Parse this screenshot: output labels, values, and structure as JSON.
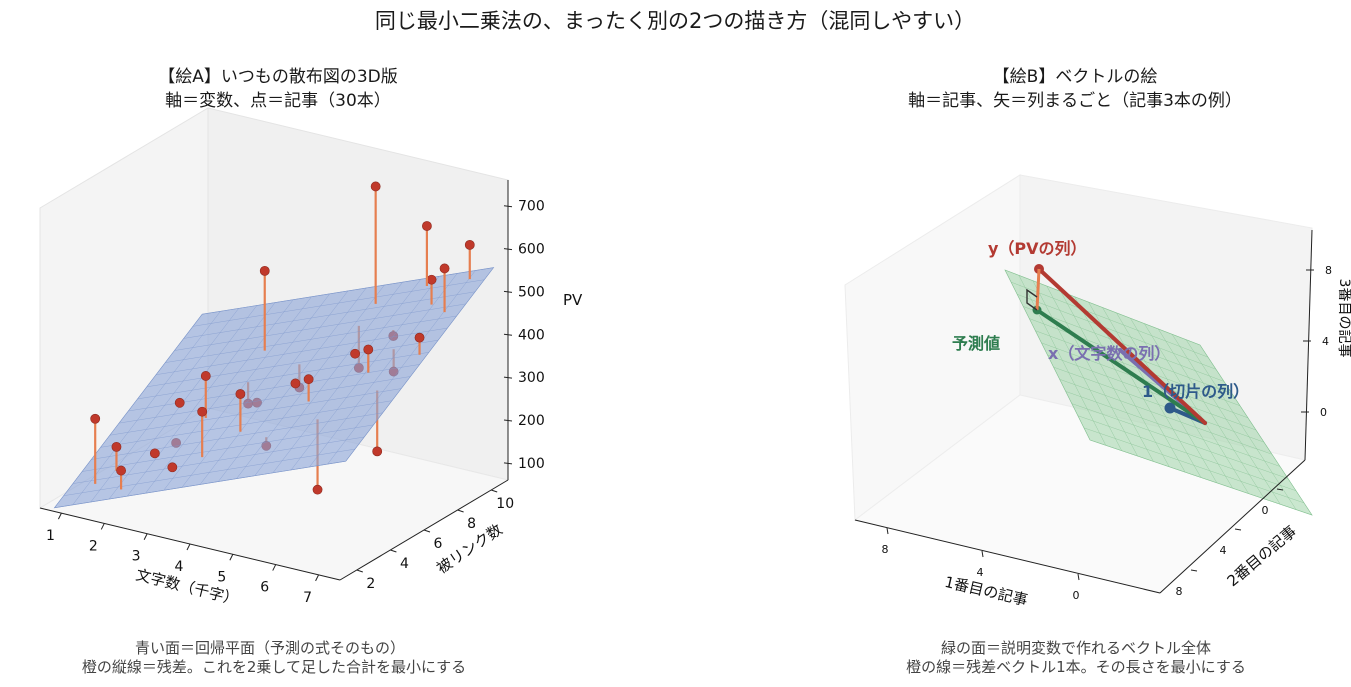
{
  "suptitle": "同じ最小二乗法の、まったく別の2つの描き方（混同しやすい）",
  "chart_data": [
    {
      "type": "scatter3d",
      "title_line1": "【絵A】いつもの散布図の3D版",
      "title_line2": "軸＝変数、点＝記事（30本）",
      "xlabel": "文字数（千字）",
      "ylabel": "被リンク数",
      "zlabel": "PV",
      "xticks": [
        "1",
        "2",
        "3",
        "4",
        "5",
        "6",
        "7"
      ],
      "yticks": [
        "2",
        "4",
        "6",
        "8",
        "10"
      ],
      "zticks": [
        "100",
        "200",
        "300",
        "400",
        "500",
        "600",
        "700"
      ],
      "xlim": [
        0.5,
        7.5
      ],
      "ylim": [
        1,
        11
      ],
      "zlim": [
        60,
        760
      ],
      "plane": {
        "intercept": -20,
        "coef_x": 40,
        "coef_y": 28
      },
      "points": [
        {
          "x": 1.2,
          "y": 2.5,
          "z": 250
        },
        {
          "x": 1.5,
          "y": 3.0,
          "z": 180
        },
        {
          "x": 2.0,
          "y": 2.0,
          "z": 160
        },
        {
          "x": 2.2,
          "y": 3.5,
          "z": 170
        },
        {
          "x": 2.5,
          "y": 4.0,
          "z": 190
        },
        {
          "x": 1.8,
          "y": 6.0,
          "z": 220
        },
        {
          "x": 2.8,
          "y": 5.0,
          "z": 330
        },
        {
          "x": 3.0,
          "y": 2.5,
          "z": 180
        },
        {
          "x": 3.2,
          "y": 6.5,
          "z": 240
        },
        {
          "x": 3.5,
          "y": 3.0,
          "z": 310
        },
        {
          "x": 3.0,
          "y": 8.0,
          "z": 510
        },
        {
          "x": 3.8,
          "y": 5.5,
          "z": 280
        },
        {
          "x": 4.0,
          "y": 4.0,
          "z": 340
        },
        {
          "x": 4.2,
          "y": 7.0,
          "z": 290
        },
        {
          "x": 4.5,
          "y": 6.0,
          "z": 330
        },
        {
          "x": 4.8,
          "y": 3.5,
          "z": 250
        },
        {
          "x": 5.0,
          "y": 8.5,
          "z": 320
        },
        {
          "x": 5.2,
          "y": 5.0,
          "z": 380
        },
        {
          "x": 5.5,
          "y": 7.0,
          "z": 400
        },
        {
          "x": 5.0,
          "y": 9.5,
          "z": 720
        },
        {
          "x": 5.8,
          "y": 4.0,
          "z": 160
        },
        {
          "x": 6.0,
          "y": 8.0,
          "z": 430
        },
        {
          "x": 6.2,
          "y": 6.0,
          "z": 450
        },
        {
          "x": 6.5,
          "y": 9.0,
          "z": 550
        },
        {
          "x": 6.0,
          "y": 10.0,
          "z": 640
        },
        {
          "x": 6.8,
          "y": 5.0,
          "z": 250
        },
        {
          "x": 7.0,
          "y": 8.5,
          "z": 600
        },
        {
          "x": 7.0,
          "y": 10.0,
          "z": 620
        },
        {
          "x": 7.2,
          "y": 6.5,
          "z": 490
        },
        {
          "x": 6.4,
          "y": 7.0,
          "z": 380
        }
      ],
      "caption_line1": "青い面＝回帰平面（予測の式そのもの）",
      "caption_line2": "橙の縦線＝残差。これを2乗して足した合計を最小にする",
      "plane_color": "#8ea6d8",
      "point_color": "#c0392b",
      "residual_color": "#e67e4f"
    },
    {
      "type": "vector3d",
      "title_line1": "【絵B】ベクトルの絵",
      "title_line2": "軸＝記事、矢＝列まるごと（記事3本の例）",
      "xlabel": "1番目の記事",
      "ylabel": "2番目の記事",
      "zlabel": "3番目の記事",
      "xticks": [
        "8",
        "4",
        "0"
      ],
      "yticks": [
        "0",
        "4",
        "8"
      ],
      "zticks": [
        "0",
        "4",
        "8"
      ],
      "vectors": [
        {
          "name": "1（切片の列）",
          "vec": [
            1,
            1,
            1
          ],
          "color": "#2e5a8a"
        },
        {
          "name": "x（文字数の列）",
          "vec": [
            2,
            5,
            3
          ],
          "color": "#7a6fb0"
        },
        {
          "name": "y（PVの列）",
          "vec": [
            8,
            5,
            7
          ],
          "color": "#b33a32"
        }
      ],
      "predicted_label": "予測値",
      "predicted_vec": [
        7,
        6,
        5.6
      ],
      "predicted_color": "#2e7d4f",
      "residual_color": "#e67e4f",
      "plane_color": "#9fd3a8",
      "caption_line1": "緑の面＝説明変数で作れるベクトル全体",
      "caption_line2": "橙の線＝残差ベクトル1本。その長さを最小にする"
    }
  ]
}
